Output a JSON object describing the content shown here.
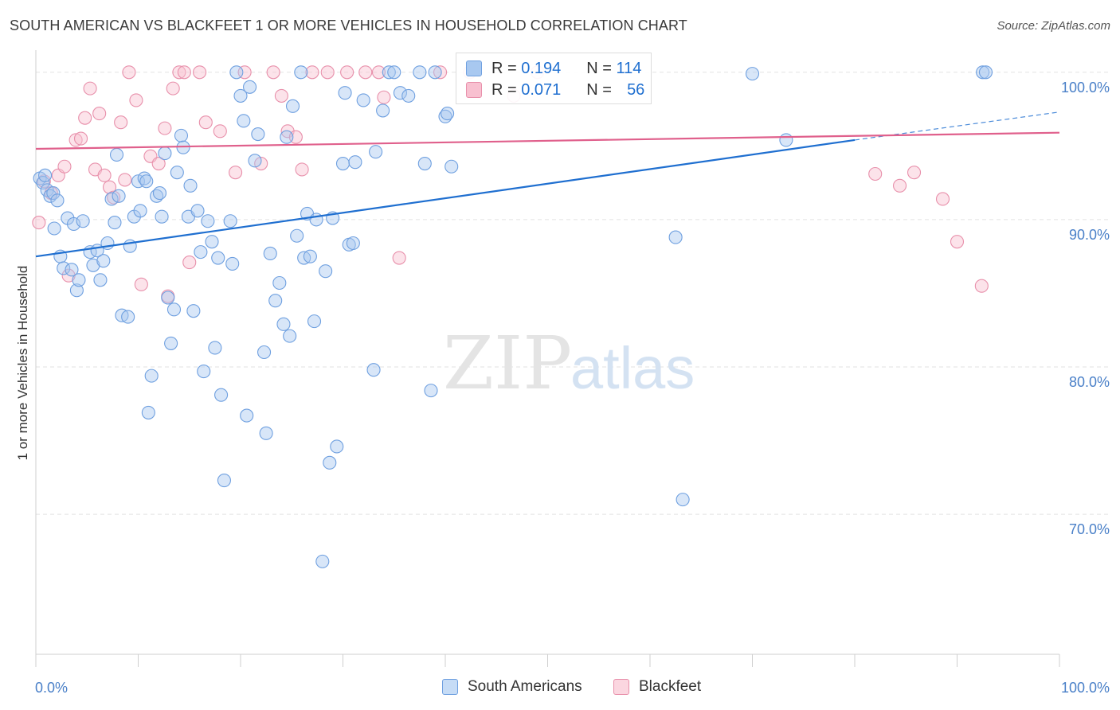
{
  "title": "SOUTH AMERICAN VS BLACKFEET 1 OR MORE VEHICLES IN HOUSEHOLD CORRELATION CHART",
  "source": "Source: ZipAtlas.com",
  "watermark": {
    "zip": "ZIP",
    "atlas": "atlas"
  },
  "legend": {
    "r_label": "R =",
    "n_label": "N =",
    "rows": [
      {
        "series": "South Americans",
        "r": "0.194",
        "n": "114",
        "color": "#a8c8f0",
        "stroke": "#6fa0e0"
      },
      {
        "series": "Blackfeet",
        "r": "0.071",
        "n": "56",
        "color": "#f8c0d0",
        "stroke": "#e890ab"
      }
    ]
  },
  "chart_data": {
    "type": "scatter",
    "title": "SOUTH AMERICAN VS BLACKFEET 1 OR MORE VEHICLES IN HOUSEHOLD CORRELATION CHART",
    "xlabel": "",
    "ylabel": "1 or more Vehicles in Household",
    "xlim": [
      0,
      100
    ],
    "ylim": [
      60.5,
      101.5
    ],
    "x_tick_labels": [
      "0.0%",
      "100.0%"
    ],
    "y_ticks": [
      70,
      80,
      90,
      100
    ],
    "y_tick_labels": [
      "70.0%",
      "80.0%",
      "90.0%",
      "100.0%"
    ],
    "grid": true,
    "legend_position": "top-center",
    "series": [
      {
        "name": "South Americans",
        "color": "#a8c8f0",
        "stroke": "#6fa0e0",
        "trend": {
          "x0": 0,
          "y0": 87.5,
          "x1": 80,
          "y1": 95.4,
          "dashed_to_x": 100,
          "dashed_to_y": 97.3,
          "color": "#1f6fd0"
        },
        "points": [
          [
            0.4,
            92.8
          ],
          [
            0.7,
            92.5
          ],
          [
            0.9,
            93.0
          ],
          [
            1.1,
            92.0
          ],
          [
            1.4,
            91.6
          ],
          [
            1.7,
            91.8
          ],
          [
            2.1,
            91.3
          ],
          [
            1.8,
            89.4
          ],
          [
            2.4,
            87.5
          ],
          [
            2.7,
            86.7
          ],
          [
            3.1,
            90.1
          ],
          [
            3.5,
            86.6
          ],
          [
            3.7,
            89.7
          ],
          [
            4.0,
            85.2
          ],
          [
            4.2,
            85.9
          ],
          [
            4.6,
            89.9
          ],
          [
            5.3,
            87.8
          ],
          [
            5.6,
            86.9
          ],
          [
            6.0,
            87.9
          ],
          [
            6.3,
            85.9
          ],
          [
            6.6,
            87.2
          ],
          [
            7.0,
            88.4
          ],
          [
            7.4,
            91.4
          ],
          [
            7.7,
            89.8
          ],
          [
            7.9,
            94.4
          ],
          [
            8.1,
            91.6
          ],
          [
            8.4,
            83.5
          ],
          [
            9.0,
            83.4
          ],
          [
            9.2,
            88.2
          ],
          [
            9.6,
            90.2
          ],
          [
            10.0,
            92.6
          ],
          [
            10.2,
            90.6
          ],
          [
            10.6,
            92.8
          ],
          [
            10.8,
            92.6
          ],
          [
            11.0,
            76.9
          ],
          [
            11.3,
            79.4
          ],
          [
            11.8,
            91.6
          ],
          [
            12.1,
            91.8
          ],
          [
            12.3,
            90.2
          ],
          [
            12.6,
            94.5
          ],
          [
            12.9,
            84.7
          ],
          [
            13.2,
            81.6
          ],
          [
            13.5,
            83.9
          ],
          [
            13.8,
            93.2
          ],
          [
            14.2,
            95.7
          ],
          [
            14.4,
            94.9
          ],
          [
            14.9,
            90.2
          ],
          [
            15.1,
            92.3
          ],
          [
            15.4,
            83.8
          ],
          [
            15.8,
            90.6
          ],
          [
            16.1,
            87.8
          ],
          [
            16.4,
            79.7
          ],
          [
            16.8,
            89.9
          ],
          [
            17.2,
            88.5
          ],
          [
            17.5,
            81.3
          ],
          [
            17.8,
            87.4
          ],
          [
            18.1,
            78.1
          ],
          [
            18.4,
            72.3
          ],
          [
            19.0,
            89.9
          ],
          [
            19.2,
            87.0
          ],
          [
            19.6,
            100.0
          ],
          [
            20.0,
            98.4
          ],
          [
            20.3,
            96.7
          ],
          [
            20.6,
            76.7
          ],
          [
            20.9,
            99.0
          ],
          [
            21.4,
            94.0
          ],
          [
            21.7,
            95.8
          ],
          [
            22.3,
            81.0
          ],
          [
            22.5,
            75.5
          ],
          [
            22.9,
            87.7
          ],
          [
            23.4,
            84.5
          ],
          [
            23.8,
            85.7
          ],
          [
            24.2,
            82.9
          ],
          [
            24.5,
            95.6
          ],
          [
            24.8,
            82.1
          ],
          [
            25.1,
            97.7
          ],
          [
            25.5,
            88.9
          ],
          [
            25.9,
            100.0
          ],
          [
            26.2,
            87.4
          ],
          [
            26.5,
            90.4
          ],
          [
            26.8,
            87.5
          ],
          [
            27.2,
            83.1
          ],
          [
            27.4,
            90.0
          ],
          [
            28.0,
            66.8
          ],
          [
            28.3,
            86.5
          ],
          [
            28.7,
            73.5
          ],
          [
            29.0,
            90.1
          ],
          [
            29.4,
            74.6
          ],
          [
            30.0,
            93.8
          ],
          [
            30.2,
            98.6
          ],
          [
            30.6,
            88.3
          ],
          [
            31.0,
            88.4
          ],
          [
            31.2,
            93.9
          ],
          [
            32.0,
            98.1
          ],
          [
            33.0,
            79.8
          ],
          [
            33.2,
            94.6
          ],
          [
            33.9,
            97.4
          ],
          [
            34.5,
            100.0
          ],
          [
            35.0,
            100.0
          ],
          [
            35.6,
            98.6
          ],
          [
            36.4,
            98.4
          ],
          [
            37.5,
            100.0
          ],
          [
            38.0,
            93.8
          ],
          [
            38.6,
            78.4
          ],
          [
            39.0,
            100.0
          ],
          [
            40.0,
            97.0
          ],
          [
            40.2,
            97.2
          ],
          [
            40.6,
            93.6
          ],
          [
            62.5,
            88.8
          ],
          [
            63.2,
            71.0
          ],
          [
            70.0,
            99.9
          ],
          [
            73.3,
            95.4
          ],
          [
            92.5,
            100.0
          ],
          [
            92.8,
            100.0
          ]
        ]
      },
      {
        "name": "Blackfeet",
        "color": "#f8c0d0",
        "stroke": "#e890ab",
        "trend": {
          "x0": 0,
          "y0": 94.8,
          "x1": 100,
          "y1": 95.9,
          "color": "#e0608c"
        },
        "points": [
          [
            0.3,
            89.8
          ],
          [
            0.8,
            92.6
          ],
          [
            1.5,
            91.8
          ],
          [
            2.2,
            93.0
          ],
          [
            2.8,
            93.6
          ],
          [
            3.2,
            86.2
          ],
          [
            3.9,
            95.4
          ],
          [
            4.4,
            95.5
          ],
          [
            4.8,
            96.9
          ],
          [
            5.3,
            98.9
          ],
          [
            5.8,
            93.4
          ],
          [
            6.2,
            97.2
          ],
          [
            6.7,
            93.0
          ],
          [
            7.2,
            92.2
          ],
          [
            7.6,
            91.5
          ],
          [
            8.3,
            96.6
          ],
          [
            8.7,
            92.7
          ],
          [
            9.1,
            100.0
          ],
          [
            9.8,
            98.1
          ],
          [
            10.3,
            85.6
          ],
          [
            11.2,
            94.3
          ],
          [
            12.0,
            93.8
          ],
          [
            12.6,
            96.2
          ],
          [
            12.9,
            84.8
          ],
          [
            13.4,
            98.9
          ],
          [
            14.0,
            100.0
          ],
          [
            14.5,
            100.0
          ],
          [
            15.0,
            87.1
          ],
          [
            16.0,
            100.0
          ],
          [
            16.6,
            96.6
          ],
          [
            18.0,
            96.0
          ],
          [
            19.5,
            93.2
          ],
          [
            20.4,
            100.0
          ],
          [
            22.0,
            93.8
          ],
          [
            23.2,
            100.0
          ],
          [
            24.0,
            98.4
          ],
          [
            24.6,
            96.0
          ],
          [
            25.4,
            95.6
          ],
          [
            26.0,
            93.4
          ],
          [
            27.0,
            100.0
          ],
          [
            28.5,
            100.0
          ],
          [
            30.4,
            100.0
          ],
          [
            32.2,
            100.0
          ],
          [
            33.5,
            100.0
          ],
          [
            34.0,
            98.3
          ],
          [
            35.5,
            87.4
          ],
          [
            39.5,
            100.0
          ],
          [
            42.4,
            100.0
          ],
          [
            46.7,
            98.4
          ],
          [
            49.0,
            100.0
          ],
          [
            82.0,
            93.1
          ],
          [
            84.4,
            92.3
          ],
          [
            85.8,
            93.2
          ],
          [
            88.6,
            91.4
          ],
          [
            90.0,
            88.5
          ],
          [
            92.4,
            85.5
          ]
        ]
      }
    ]
  }
}
